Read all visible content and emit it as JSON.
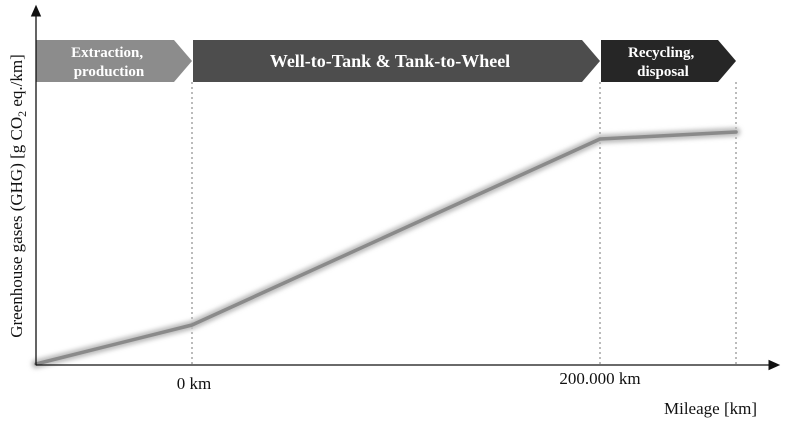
{
  "diagram": {
    "y_axis_label": {
      "main": "Greenhouse  gases (GHG) [g CO",
      "subscript": "2",
      "tail": " eq./km]"
    },
    "x_axis_label": "Mileage [km]",
    "x_ticks": [
      "0 km",
      "200.000 km"
    ],
    "phases": [
      {
        "lines": [
          "Extraction,",
          "production"
        ],
        "color": "#8c8c8c"
      },
      {
        "lines": [
          "Well-to-Tank & Tank-to-Wheel"
        ],
        "color": "#4d4d4d"
      },
      {
        "lines": [
          "Recycling,",
          "disposal"
        ],
        "color": "#262626"
      }
    ],
    "curve_color": "#8a8a8a",
    "axis_color": "#111111"
  }
}
